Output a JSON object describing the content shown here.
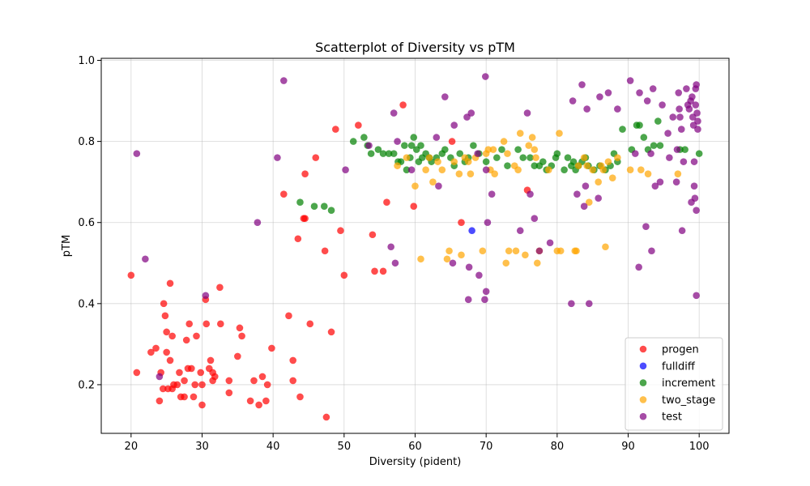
{
  "chart_data": {
    "type": "scatter",
    "title": "Scatterplot of Diversity vs pTM",
    "xlabel": "Diversity (pident)",
    "ylabel": "pTM",
    "xlim": [
      15.8,
      104.2
    ],
    "ylim": [
      0.08,
      1.005
    ],
    "xticks": [
      20,
      30,
      40,
      50,
      60,
      70,
      80,
      90,
      100
    ],
    "yticks": [
      0.2,
      0.4,
      0.6,
      0.8,
      1.0
    ],
    "grid": true,
    "legend_position": "lower-right",
    "series": [
      {
        "name": "progen",
        "color": "#ff0000",
        "points": [
          [
            20.0,
            0.47
          ],
          [
            20.8,
            0.23
          ],
          [
            22.8,
            0.28
          ],
          [
            23.5,
            0.29
          ],
          [
            24.0,
            0.16
          ],
          [
            24.2,
            0.23
          ],
          [
            24.5,
            0.19
          ],
          [
            24.6,
            0.4
          ],
          [
            24.8,
            0.37
          ],
          [
            25.0,
            0.33
          ],
          [
            25.0,
            0.28
          ],
          [
            25.2,
            0.19
          ],
          [
            25.5,
            0.45
          ],
          [
            25.5,
            0.26
          ],
          [
            25.8,
            0.19
          ],
          [
            25.8,
            0.32
          ],
          [
            26.0,
            0.2
          ],
          [
            26.5,
            0.2
          ],
          [
            26.8,
            0.23
          ],
          [
            27.0,
            0.17
          ],
          [
            27.5,
            0.21
          ],
          [
            27.5,
            0.17
          ],
          [
            27.8,
            0.31
          ],
          [
            28.0,
            0.24
          ],
          [
            28.2,
            0.35
          ],
          [
            28.5,
            0.24
          ],
          [
            28.8,
            0.17
          ],
          [
            29.0,
            0.2
          ],
          [
            29.2,
            0.32
          ],
          [
            29.8,
            0.23
          ],
          [
            30.0,
            0.15
          ],
          [
            30.0,
            0.2
          ],
          [
            30.5,
            0.41
          ],
          [
            30.6,
            0.35
          ],
          [
            31.0,
            0.24
          ],
          [
            31.2,
            0.26
          ],
          [
            31.5,
            0.23
          ],
          [
            31.5,
            0.21
          ],
          [
            31.8,
            0.22
          ],
          [
            32.5,
            0.44
          ],
          [
            32.6,
            0.35
          ],
          [
            33.8,
            0.21
          ],
          [
            33.8,
            0.18
          ],
          [
            35.0,
            0.27
          ],
          [
            35.3,
            0.34
          ],
          [
            35.6,
            0.32
          ],
          [
            36.8,
            0.16
          ],
          [
            37.3,
            0.21
          ],
          [
            38.0,
            0.15
          ],
          [
            38.5,
            0.22
          ],
          [
            39.0,
            0.16
          ],
          [
            39.2,
            0.2
          ],
          [
            39.8,
            0.29
          ],
          [
            41.5,
            0.67
          ],
          [
            42.2,
            0.37
          ],
          [
            42.8,
            0.26
          ],
          [
            42.8,
            0.21
          ],
          [
            43.5,
            0.56
          ],
          [
            43.8,
            0.17
          ],
          [
            44.3,
            0.61
          ],
          [
            44.5,
            0.61
          ],
          [
            44.5,
            0.72
          ],
          [
            45.2,
            0.35
          ],
          [
            46.0,
            0.76
          ],
          [
            47.3,
            0.53
          ],
          [
            47.5,
            0.12
          ],
          [
            48.2,
            0.33
          ],
          [
            48.8,
            0.83
          ],
          [
            49.5,
            0.58
          ],
          [
            50.0,
            0.47
          ],
          [
            52.0,
            0.84
          ],
          [
            54.0,
            0.57
          ],
          [
            54.3,
            0.48
          ],
          [
            55.5,
            0.48
          ],
          [
            56.0,
            0.65
          ],
          [
            58.3,
            0.89
          ],
          [
            59.8,
            0.64
          ],
          [
            65.2,
            0.8
          ],
          [
            66.5,
            0.6
          ],
          [
            75.8,
            0.68
          ]
        ]
      },
      {
        "name": "fulldiff",
        "color": "#0000ff",
        "points": [
          [
            68.0,
            0.58
          ]
        ]
      },
      {
        "name": "increment",
        "color": "#008000",
        "points": [
          [
            43.8,
            0.65
          ],
          [
            45.8,
            0.64
          ],
          [
            47.2,
            0.64
          ],
          [
            48.2,
            0.63
          ],
          [
            51.3,
            0.8
          ],
          [
            52.8,
            0.81
          ],
          [
            53.3,
            0.79
          ],
          [
            53.8,
            0.77
          ],
          [
            54.8,
            0.78
          ],
          [
            55.5,
            0.77
          ],
          [
            56.3,
            0.77
          ],
          [
            57.0,
            0.77
          ],
          [
            57.6,
            0.75
          ],
          [
            58.0,
            0.75
          ],
          [
            58.5,
            0.79
          ],
          [
            58.8,
            0.73
          ],
          [
            59.3,
            0.76
          ],
          [
            59.5,
            0.79
          ],
          [
            59.8,
            0.81
          ],
          [
            60.2,
            0.78
          ],
          [
            60.5,
            0.75
          ],
          [
            60.8,
            0.79
          ],
          [
            61.0,
            0.76
          ],
          [
            61.5,
            0.77
          ],
          [
            62.0,
            0.76
          ],
          [
            62.3,
            0.75
          ],
          [
            63.0,
            0.76
          ],
          [
            63.8,
            0.77
          ],
          [
            64.2,
            0.78
          ],
          [
            65.0,
            0.76
          ],
          [
            65.5,
            0.74
          ],
          [
            66.3,
            0.77
          ],
          [
            67.0,
            0.75
          ],
          [
            67.5,
            0.76
          ],
          [
            68.2,
            0.79
          ],
          [
            69.0,
            0.77
          ],
          [
            70.0,
            0.75
          ],
          [
            71.5,
            0.76
          ],
          [
            72.2,
            0.78
          ],
          [
            73.0,
            0.74
          ],
          [
            74.5,
            0.78
          ],
          [
            75.2,
            0.76
          ],
          [
            76.2,
            0.76
          ],
          [
            76.8,
            0.74
          ],
          [
            77.5,
            0.74
          ],
          [
            78.0,
            0.75
          ],
          [
            78.5,
            0.73
          ],
          [
            79.2,
            0.74
          ],
          [
            79.8,
            0.76
          ],
          [
            80.0,
            0.77
          ],
          [
            81.0,
            0.73
          ],
          [
            81.5,
            0.76
          ],
          [
            82.0,
            0.74
          ],
          [
            82.3,
            0.75
          ],
          [
            82.6,
            0.73
          ],
          [
            83.0,
            0.74
          ],
          [
            83.5,
            0.75
          ],
          [
            84.0,
            0.76
          ],
          [
            84.4,
            0.74
          ],
          [
            85.2,
            0.73
          ],
          [
            86.0,
            0.74
          ],
          [
            86.8,
            0.73
          ],
          [
            87.5,
            0.74
          ],
          [
            88.0,
            0.77
          ],
          [
            88.5,
            0.75
          ],
          [
            89.2,
            0.83
          ],
          [
            90.5,
            0.78
          ],
          [
            91.2,
            0.84
          ],
          [
            91.6,
            0.84
          ],
          [
            92.2,
            0.81
          ],
          [
            92.8,
            0.78
          ],
          [
            93.6,
            0.79
          ],
          [
            94.5,
            0.79
          ],
          [
            94.2,
            0.85
          ],
          [
            97.3,
            0.78
          ],
          [
            98.0,
            0.78
          ],
          [
            100.0,
            0.77
          ]
        ]
      },
      {
        "name": "two_stage",
        "color": "#ffa500",
        "points": [
          [
            57.5,
            0.74
          ],
          [
            58.8,
            0.76
          ],
          [
            60.0,
            0.69
          ],
          [
            60.8,
            0.51
          ],
          [
            61.5,
            0.73
          ],
          [
            62.0,
            0.76
          ],
          [
            62.5,
            0.7
          ],
          [
            63.2,
            0.75
          ],
          [
            63.8,
            0.73
          ],
          [
            64.5,
            0.51
          ],
          [
            64.8,
            0.53
          ],
          [
            65.5,
            0.75
          ],
          [
            66.2,
            0.72
          ],
          [
            66.5,
            0.52
          ],
          [
            67.0,
            0.76
          ],
          [
            67.5,
            0.75
          ],
          [
            67.8,
            0.72
          ],
          [
            68.5,
            0.76
          ],
          [
            69.5,
            0.53
          ],
          [
            70.0,
            0.77
          ],
          [
            70.3,
            0.78
          ],
          [
            70.6,
            0.73
          ],
          [
            71.0,
            0.78
          ],
          [
            71.2,
            0.72
          ],
          [
            72.5,
            0.8
          ],
          [
            72.8,
            0.5
          ],
          [
            73.0,
            0.77
          ],
          [
            73.2,
            0.53
          ],
          [
            74.0,
            0.74
          ],
          [
            74.2,
            0.53
          ],
          [
            74.5,
            0.73
          ],
          [
            74.8,
            0.82
          ],
          [
            75.5,
            0.52
          ],
          [
            76.0,
            0.79
          ],
          [
            76.5,
            0.81
          ],
          [
            76.8,
            0.78
          ],
          [
            77.0,
            0.76
          ],
          [
            77.2,
            0.5
          ],
          [
            77.5,
            0.53
          ],
          [
            78.8,
            0.73
          ],
          [
            80.0,
            0.53
          ],
          [
            80.3,
            0.82
          ],
          [
            80.5,
            0.53
          ],
          [
            82.5,
            0.53
          ],
          [
            82.7,
            0.53
          ],
          [
            83.0,
            0.74
          ],
          [
            83.8,
            0.76
          ],
          [
            84.2,
            0.74
          ],
          [
            84.5,
            0.65
          ],
          [
            85.0,
            0.73
          ],
          [
            85.8,
            0.7
          ],
          [
            86.2,
            0.74
          ],
          [
            86.5,
            0.73
          ],
          [
            86.8,
            0.54
          ],
          [
            87.2,
            0.75
          ],
          [
            87.8,
            0.71
          ],
          [
            88.5,
            0.76
          ],
          [
            90.3,
            0.73
          ],
          [
            91.8,
            0.73
          ],
          [
            92.8,
            0.72
          ],
          [
            97.0,
            0.72
          ]
        ]
      },
      {
        "name": "test",
        "color": "#800080",
        "points": [
          [
            20.8,
            0.77
          ],
          [
            22.0,
            0.51
          ],
          [
            24.0,
            0.22
          ],
          [
            30.5,
            0.42
          ],
          [
            37.8,
            0.6
          ],
          [
            40.6,
            0.76
          ],
          [
            41.5,
            0.95
          ],
          [
            50.2,
            0.73
          ],
          [
            53.5,
            0.79
          ],
          [
            56.6,
            0.54
          ],
          [
            57.0,
            0.87
          ],
          [
            57.2,
            0.5
          ],
          [
            57.5,
            0.8
          ],
          [
            59.5,
            0.73
          ],
          [
            63.0,
            0.81
          ],
          [
            63.3,
            0.69
          ],
          [
            64.2,
            0.91
          ],
          [
            65.3,
            0.5
          ],
          [
            65.5,
            0.84
          ],
          [
            67.3,
            0.86
          ],
          [
            67.5,
            0.41
          ],
          [
            67.6,
            0.49
          ],
          [
            67.9,
            0.87
          ],
          [
            68.8,
            0.77
          ],
          [
            69.0,
            0.47
          ],
          [
            69.8,
            0.41
          ],
          [
            69.9,
            0.96
          ],
          [
            70.0,
            0.43
          ],
          [
            70.2,
            0.6
          ],
          [
            70.8,
            0.67
          ],
          [
            70.0,
            0.73
          ],
          [
            74.8,
            0.58
          ],
          [
            75.8,
            0.87
          ],
          [
            76.2,
            0.67
          ],
          [
            76.8,
            0.61
          ],
          [
            77.5,
            0.53
          ],
          [
            79.0,
            0.55
          ],
          [
            82.0,
            0.4
          ],
          [
            82.2,
            0.9
          ],
          [
            82.8,
            0.67
          ],
          [
            83.5,
            0.94
          ],
          [
            83.8,
            0.64
          ],
          [
            84.0,
            0.69
          ],
          [
            84.2,
            0.88
          ],
          [
            84.5,
            0.4
          ],
          [
            85.8,
            0.66
          ],
          [
            86.0,
            0.91
          ],
          [
            87.2,
            0.92
          ],
          [
            88.5,
            0.88
          ],
          [
            90.3,
            0.95
          ],
          [
            91.0,
            0.77
          ],
          [
            91.5,
            0.49
          ],
          [
            91.6,
            0.92
          ],
          [
            92.5,
            0.59
          ],
          [
            92.7,
            0.9
          ],
          [
            93.2,
            0.77
          ],
          [
            93.3,
            0.53
          ],
          [
            93.5,
            0.93
          ],
          [
            93.8,
            0.69
          ],
          [
            94.5,
            0.7
          ],
          [
            94.8,
            0.89
          ],
          [
            95.6,
            0.82
          ],
          [
            95.8,
            0.76
          ],
          [
            96.3,
            0.86
          ],
          [
            96.8,
            0.7
          ],
          [
            96.9,
            0.78
          ],
          [
            97.1,
            0.92
          ],
          [
            97.2,
            0.88
          ],
          [
            97.3,
            0.86
          ],
          [
            97.5,
            0.83
          ],
          [
            97.6,
            0.58
          ],
          [
            97.8,
            0.75
          ],
          [
            98.2,
            0.93
          ],
          [
            98.4,
            0.89
          ],
          [
            98.6,
            0.88
          ],
          [
            98.8,
            0.9
          ],
          [
            98.9,
            0.65
          ],
          [
            99.0,
            0.91
          ],
          [
            99.1,
            0.86
          ],
          [
            99.2,
            0.84
          ],
          [
            99.3,
            0.69
          ],
          [
            99.3,
            0.75
          ],
          [
            99.4,
            0.66
          ],
          [
            99.5,
            0.93
          ],
          [
            99.5,
            0.89
          ],
          [
            99.6,
            0.63
          ],
          [
            99.6,
            0.94
          ],
          [
            99.6,
            0.42
          ],
          [
            99.7,
            0.87
          ],
          [
            99.8,
            0.83
          ],
          [
            99.8,
            0.85
          ]
        ]
      }
    ]
  }
}
